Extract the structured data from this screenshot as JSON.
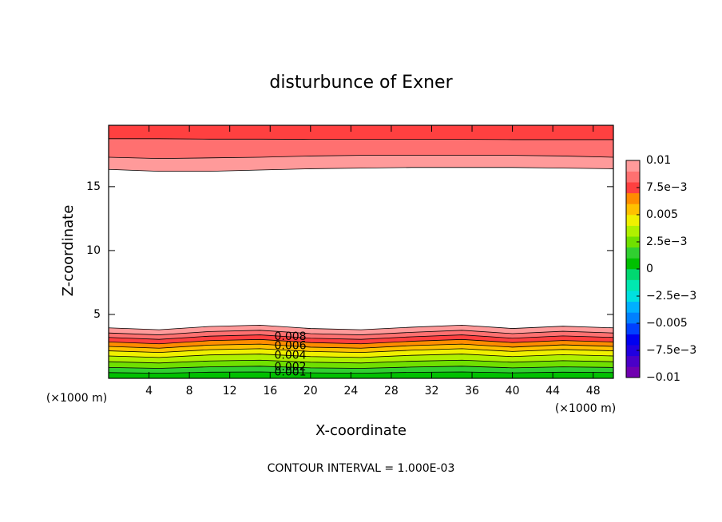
{
  "chart_data": {
    "type": "contour",
    "title": "disturbunce of Exner",
    "xlabel": "X-coordinate",
    "ylabel": "Z-coordinate",
    "x_unit": "(×1000 m)",
    "footer": "CONTOUR INTERVAL = 1.000E-03",
    "xlim": [
      0,
      50
    ],
    "ylim": [
      0,
      19.8
    ],
    "xticks": [
      4,
      8,
      12,
      16,
      20,
      24,
      28,
      32,
      36,
      40,
      44,
      48
    ],
    "yticks": [
      5,
      10,
      15
    ],
    "x": [
      0,
      5,
      10,
      15,
      20,
      25,
      30,
      35,
      40,
      45,
      50
    ],
    "bottom_contours": [
      {
        "level": 0.001,
        "labeled": true,
        "z": [
          0.45,
          0.4,
          0.48,
          0.5,
          0.43,
          0.4,
          0.47,
          0.5,
          0.43,
          0.48,
          0.45
        ]
      },
      {
        "level": 0.002,
        "labeled": true,
        "z": [
          0.85,
          0.78,
          0.9,
          0.95,
          0.82,
          0.78,
          0.88,
          0.95,
          0.82,
          0.9,
          0.85
        ]
      },
      {
        "level": 0.003,
        "labeled": false,
        "z": [
          1.3,
          1.2,
          1.36,
          1.42,
          1.26,
          1.2,
          1.34,
          1.42,
          1.26,
          1.38,
          1.3
        ]
      },
      {
        "level": 0.004,
        "labeled": true,
        "z": [
          1.75,
          1.63,
          1.83,
          1.9,
          1.7,
          1.63,
          1.8,
          1.9,
          1.7,
          1.85,
          1.75
        ]
      },
      {
        "level": 0.005,
        "labeled": false,
        "z": [
          2.15,
          2.02,
          2.24,
          2.32,
          2.1,
          2.02,
          2.2,
          2.32,
          2.1,
          2.26,
          2.15
        ]
      },
      {
        "level": 0.006,
        "labeled": true,
        "z": [
          2.5,
          2.36,
          2.6,
          2.68,
          2.44,
          2.36,
          2.56,
          2.68,
          2.44,
          2.62,
          2.5
        ]
      },
      {
        "level": 0.007,
        "labeled": false,
        "z": [
          2.85,
          2.7,
          2.95,
          3.04,
          2.8,
          2.7,
          2.9,
          3.04,
          2.8,
          2.96,
          2.85
        ]
      },
      {
        "level": 0.008,
        "labeled": true,
        "z": [
          3.2,
          3.05,
          3.3,
          3.4,
          3.14,
          3.05,
          3.25,
          3.4,
          3.14,
          3.32,
          3.2
        ]
      },
      {
        "level": 0.009,
        "labeled": false,
        "z": [
          3.55,
          3.4,
          3.66,
          3.76,
          3.5,
          3.4,
          3.6,
          3.76,
          3.5,
          3.68,
          3.55
        ]
      },
      {
        "level": 0.01,
        "labeled": false,
        "z": [
          3.95,
          3.8,
          4.06,
          4.16,
          3.9,
          3.8,
          4.0,
          4.16,
          3.9,
          4.08,
          3.95
        ]
      }
    ],
    "top_contours": [
      {
        "level": 0.01,
        "labeled": false,
        "z": [
          16.35,
          16.2,
          16.2,
          16.3,
          16.4,
          16.45,
          16.5,
          16.5,
          16.5,
          16.45,
          16.4
        ]
      },
      {
        "level": 0.009,
        "labeled": false,
        "z": [
          17.3,
          17.2,
          17.25,
          17.3,
          17.4,
          17.45,
          17.45,
          17.45,
          17.45,
          17.4,
          17.3
        ]
      },
      {
        "level": 0.008,
        "labeled": false,
        "z": [
          18.75,
          18.75,
          18.72,
          18.72,
          18.7,
          18.7,
          18.7,
          18.7,
          18.68,
          18.68,
          18.68
        ]
      }
    ],
    "clim": [
      -0.01,
      0.01
    ],
    "colors": [
      "#7000b0",
      "#4a00c8",
      "#2000e0",
      "#0000f0",
      "#0040ff",
      "#0080ff",
      "#00b0ff",
      "#00e0e0",
      "#00e8b0",
      "#00d870",
      "#00c000",
      "#30d030",
      "#70e000",
      "#b0f000",
      "#f0f000",
      "#ffc000",
      "#ff8c00",
      "#ff4040",
      "#ff7070",
      "#ff9a9a"
    ],
    "cticks": [
      {
        "value": -0.01,
        "label": "−0.01"
      },
      {
        "value": -0.0075,
        "label": "−7.5e−3"
      },
      {
        "value": -0.005,
        "label": "−0.005"
      },
      {
        "value": -0.0025,
        "label": "−2.5e−3"
      },
      0,
      {
        "value": 0.0025,
        "label": "2.5e−3"
      },
      0.005,
      {
        "value": 0.0075,
        "label": "7.5e−3"
      },
      0.01
    ]
  }
}
